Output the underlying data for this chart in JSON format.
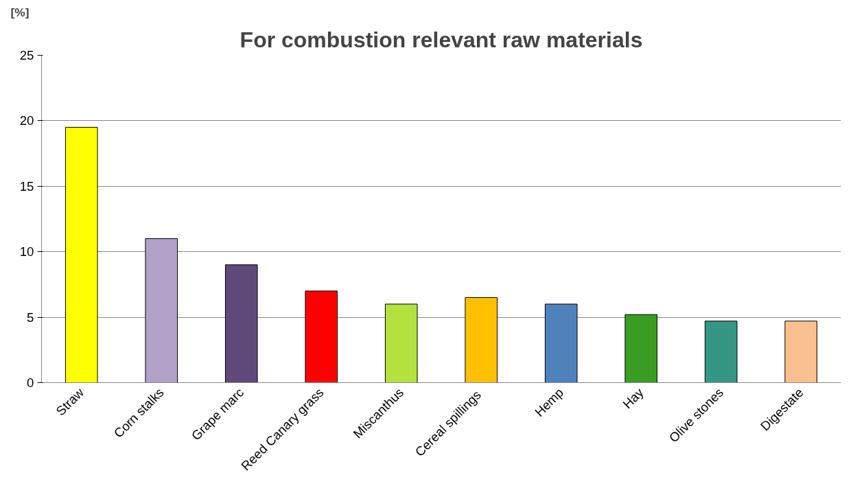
{
  "chart_data": {
    "type": "bar",
    "title": "For combustion relevant raw materials",
    "ylabel": "[%]",
    "categories": [
      "Straw",
      "Corn stalks",
      "Grape marc",
      "Reed Canary grass",
      "Miscanthus",
      "Cereal  spillings",
      "Hemp",
      "Hay",
      "Olive stones",
      "Digestate"
    ],
    "values": [
      19.5,
      11,
      9,
      7,
      6,
      6.5,
      6,
      5.2,
      4.7,
      4.7
    ],
    "colors": [
      "#ffff00",
      "#b1a0c7",
      "#604a7b",
      "#ff0000",
      "#b3e23e",
      "#ffc000",
      "#4f81bd",
      "#3a9c22",
      "#359783",
      "#fac090"
    ],
    "ylim": [
      0,
      25
    ],
    "yticks": [
      0,
      5,
      10,
      15,
      20,
      25
    ],
    "grid": "y"
  }
}
